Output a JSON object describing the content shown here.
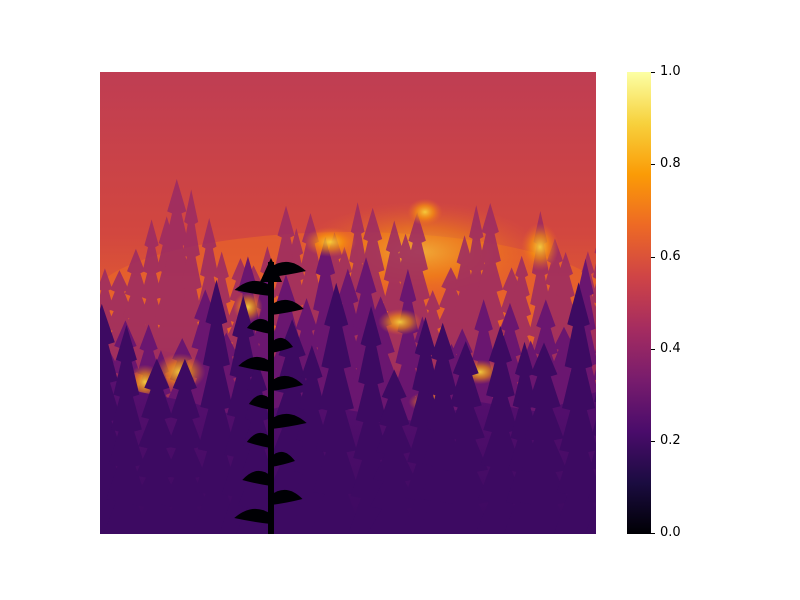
{
  "colormap": {
    "name": "inferno",
    "stops": [
      "#000004",
      "#1b0c41",
      "#4a0c6b",
      "#781c6d",
      "#a52c60",
      "#cf4446",
      "#ed6925",
      "#fb9b06",
      "#f7d13d",
      "#fcffa4"
    ]
  },
  "colorbar": {
    "min": 0.0,
    "max": 1.0,
    "ticks": [
      {
        "value": 1.0,
        "label": "1.0"
      },
      {
        "value": 0.8,
        "label": "0.8"
      },
      {
        "value": 0.6,
        "label": "0.6"
      },
      {
        "value": 0.4,
        "label": "0.4"
      },
      {
        "value": 0.2,
        "label": "0.2"
      },
      {
        "value": 0.0,
        "label": "0.0"
      }
    ]
  },
  "scene": {
    "subject": "forest-fire-false-color",
    "sky_color": "#cf4446",
    "glow_color": "#ed6925",
    "flame_color": "#fb9b06",
    "hot_color": "#f7d13d",
    "mid_tree_color": "#a52c60",
    "dark_tree_color": "#4a0c6b",
    "front_tree_color": "#000004"
  }
}
